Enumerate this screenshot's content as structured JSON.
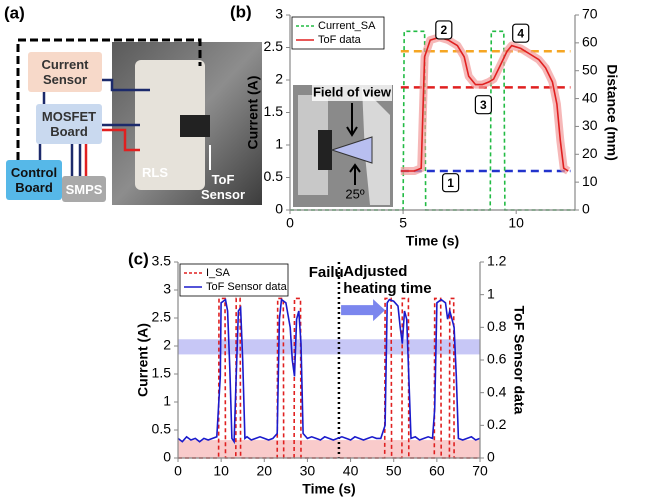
{
  "diagram": {
    "label": "(a)",
    "components": [
      "Current Sensor",
      "MOSFET Board",
      "Control Board",
      "SMPS",
      "RLS",
      "ToF Sensor"
    ]
  },
  "chart_data": [
    {
      "type": "line",
      "panel_label": "(b)",
      "xlabel": "Time (s)",
      "ylabel": "Current (A)",
      "y2label": "Distance (mm)",
      "xlim": [
        0,
        12.6
      ],
      "xticks": [
        0,
        5,
        10
      ],
      "ylim": [
        0,
        3
      ],
      "yticks": [
        0,
        0.5,
        1,
        1.5,
        2,
        2.5,
        3
      ],
      "y2lim": [
        0,
        70
      ],
      "y2ticks": [
        0,
        10,
        20,
        30,
        40,
        50,
        60,
        70
      ],
      "legend": "upper left",
      "series": [
        {
          "name": "Current_SA",
          "color": "#22bb44",
          "style": "dashed",
          "axis": "y",
          "x": [
            0,
            5.0,
            5.05,
            5.95,
            6.0,
            8.85,
            8.9,
            9.45,
            9.5,
            12.6
          ],
          "values": [
            0,
            0,
            2.75,
            2.75,
            0,
            0,
            2.75,
            2.75,
            0,
            0
          ]
        },
        {
          "name": "ToF data",
          "color": "#e02020",
          "style": "solid",
          "axis": "y2",
          "x": [
            4.9,
            5.5,
            5.8,
            5.95,
            6.2,
            6.6,
            7.0,
            7.4,
            7.7,
            7.9,
            8.2,
            8.5,
            8.8,
            9.0,
            9.3,
            9.6,
            9.8,
            10.2,
            10.6,
            11.0,
            11.3,
            11.6,
            11.8,
            11.95,
            12.1,
            12.3
          ],
          "values": [
            14,
            14,
            15,
            55,
            61,
            62,
            61,
            59,
            55,
            48,
            45,
            45,
            46,
            47,
            52,
            57,
            59,
            58,
            56,
            54,
            51,
            46,
            38,
            25,
            15,
            14
          ]
        }
      ],
      "reference_lines": [
        {
          "value": 57,
          "axis": "y2",
          "color": "#f5a623",
          "x": [
            4.9,
            12.4
          ]
        },
        {
          "value": 44,
          "axis": "y2",
          "color": "#e02020",
          "x": [
            4.9,
            12.4
          ]
        },
        {
          "value": 14,
          "axis": "y2",
          "color": "#2233cc",
          "x": [
            4.9,
            12.4
          ]
        }
      ],
      "annotations": [
        "1",
        "2",
        "3",
        "4",
        "Field of view",
        "25º"
      ]
    },
    {
      "type": "line",
      "panel_label": "(c)",
      "xlabel": "Time (s)",
      "ylabel": "Current (A)",
      "y2label": "ToF Sensor data",
      "xlim": [
        0,
        70
      ],
      "xticks": [
        0,
        10,
        20,
        30,
        40,
        50,
        60,
        70
      ],
      "ylim": [
        0,
        3.5
      ],
      "yticks": [
        0,
        0.5,
        1,
        1.5,
        2,
        2.5,
        3,
        3.5
      ],
      "y2lim": [
        0,
        1.2
      ],
      "y2ticks": [
        0,
        0.2,
        0.4,
        0.6,
        0.8,
        1,
        1.2
      ],
      "legend": "upper left",
      "series": [
        {
          "name": "I_SA",
          "color": "#e02020",
          "style": "dashed",
          "axis": "y",
          "x": [
            0,
            9.4,
            9.5,
            10.9,
            11,
            13.4,
            13.5,
            14.4,
            14.5,
            23,
            23.1,
            24.4,
            24.5,
            26.9,
            27,
            28.4,
            28.5,
            47.9,
            48,
            49.4,
            49.5,
            51.9,
            52,
            53.4,
            53.5,
            59.4,
            59.5,
            60.9,
            61,
            62.9,
            63,
            63.9,
            64,
            70
          ],
          "values": [
            0,
            0,
            2.85,
            2.85,
            0,
            0,
            2.85,
            2.85,
            0,
            0,
            2.85,
            2.85,
            0,
            0,
            2.85,
            2.85,
            0,
            0,
            2.85,
            2.85,
            0,
            0,
            2.85,
            2.85,
            0,
            0,
            2.85,
            2.85,
            0,
            0,
            2.85,
            2.85,
            0,
            0
          ]
        },
        {
          "name": "ToF Sensor data",
          "color": "#1a1acc",
          "style": "solid",
          "axis": "y2",
          "x": [
            0,
            1,
            2,
            3,
            4,
            5,
            6,
            7,
            8,
            9,
            9.8,
            10,
            11,
            11.5,
            12,
            12.5,
            13,
            13.5,
            14,
            14.5,
            15,
            15.5,
            16,
            17,
            18,
            19,
            20,
            21,
            22,
            23,
            23.5,
            24,
            25,
            26,
            26.5,
            27,
            27.5,
            28,
            28.5,
            29,
            30,
            31,
            32,
            33,
            34,
            35,
            36,
            37,
            38,
            39,
            40,
            41,
            42,
            43,
            44,
            45,
            46,
            47,
            48,
            48.5,
            49,
            50,
            51,
            51.5,
            52,
            52.5,
            53,
            53.5,
            54,
            55,
            56,
            57,
            58,
            59,
            59.5,
            60,
            61,
            62,
            62.5,
            63,
            63.5,
            64,
            64.5,
            65,
            66,
            67,
            68,
            69,
            70
          ],
          "values": [
            0.12,
            0.1,
            0.13,
            0.11,
            0.12,
            0.1,
            0.12,
            0.11,
            0.12,
            0.13,
            0.5,
            0.95,
            0.97,
            0.9,
            0.55,
            0.12,
            0.1,
            0.5,
            0.9,
            0.92,
            0.6,
            0.12,
            0.13,
            0.11,
            0.12,
            0.13,
            0.12,
            0.11,
            0.12,
            0.15,
            0.85,
            0.97,
            0.95,
            0.8,
            0.6,
            0.5,
            0.85,
            0.9,
            0.7,
            0.15,
            0.12,
            0.13,
            0.12,
            0.11,
            0.13,
            0.12,
            0.11,
            0.12,
            0.13,
            0.12,
            0.11,
            0.13,
            0.12,
            0.11,
            0.12,
            0.13,
            0.12,
            0.12,
            0.2,
            0.95,
            0.97,
            0.96,
            0.93,
            0.8,
            0.7,
            0.9,
            0.85,
            0.5,
            0.12,
            0.13,
            0.11,
            0.12,
            0.13,
            0.12,
            0.3,
            0.95,
            0.97,
            0.95,
            0.85,
            0.9,
            0.85,
            0.8,
            0.5,
            0.12,
            0.11,
            0.12,
            0.13,
            0.11,
            0.12
          ]
        }
      ],
      "bands": [
        {
          "from": 1.85,
          "to": 2.12,
          "color": "#9999ee"
        },
        {
          "from": 0,
          "to": 0.32,
          "color": "#f4a0a0"
        }
      ],
      "vlines": [
        37.3
      ],
      "arrow": {
        "x": [
          37.8,
          48
        ],
        "y": 2.64,
        "color": "#7b86ee"
      },
      "annotations": [
        "Failure",
        "Adjusted heating time"
      ]
    }
  ]
}
